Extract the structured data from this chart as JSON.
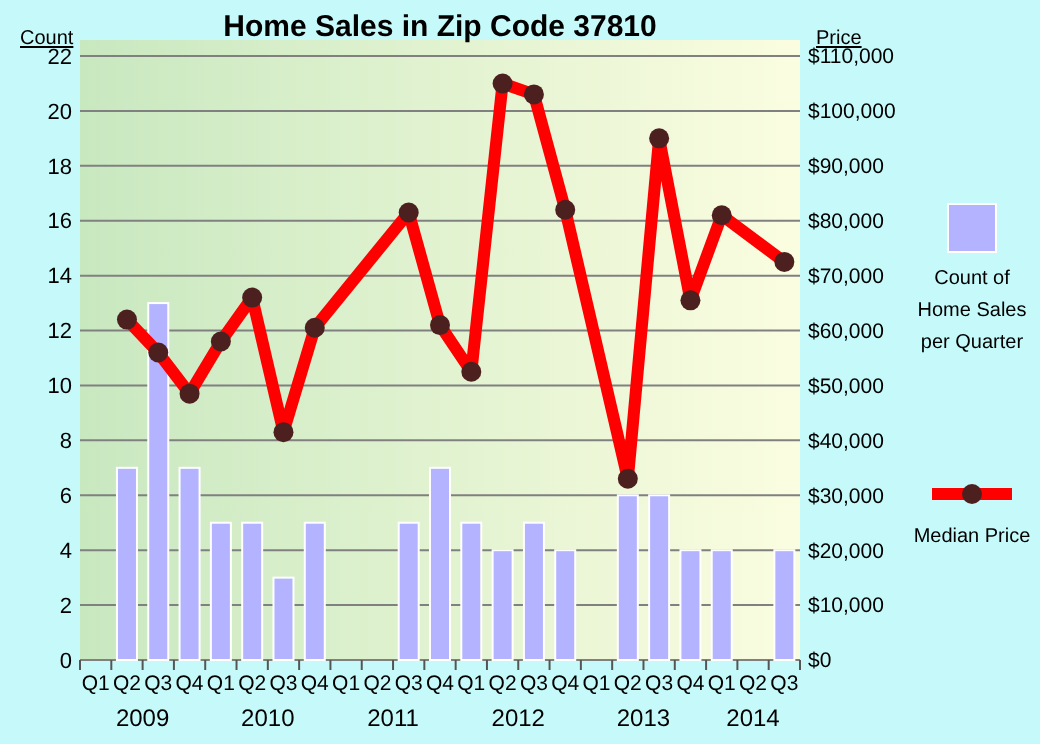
{
  "chart_data": {
    "type": "bar",
    "title": "Home Sales in Zip Code 37810",
    "ylabel": "Count",
    "y2label": "Price",
    "categories": [
      "Q1",
      "Q2",
      "Q3",
      "Q4",
      "Q1",
      "Q2",
      "Q3",
      "Q4",
      "Q1",
      "Q2",
      "Q3",
      "Q4",
      "Q1",
      "Q2",
      "Q3",
      "Q4",
      "Q1",
      "Q2",
      "Q3",
      "Q4",
      "Q1",
      "Q2",
      "Q3"
    ],
    "annotations": [
      "2009",
      "2010",
      "2011",
      "2012",
      "2013",
      "2014"
    ],
    "series": [
      {
        "name": "Count of Home Sales per Quarter",
        "color": "#b3b3ff",
        "values": [
          null,
          7,
          13,
          7,
          5,
          5,
          3,
          5,
          null,
          null,
          5,
          7,
          5,
          4,
          5,
          4,
          null,
          6,
          6,
          4,
          4,
          null,
          4
        ]
      },
      {
        "name": "Median Price",
        "type": "line",
        "axis": "y2",
        "color": "#ff0000",
        "values": [
          null,
          62000,
          56000,
          48500,
          58000,
          66000,
          41500,
          60500,
          null,
          null,
          81500,
          61000,
          52500,
          105000,
          103000,
          82000,
          null,
          33000,
          95000,
          65500,
          81000,
          null,
          72500
        ]
      }
    ],
    "ylim": [
      0,
      22
    ],
    "yticks": [
      0,
      2,
      4,
      6,
      8,
      10,
      12,
      14,
      16,
      18,
      20,
      22
    ],
    "y2lim": [
      0,
      110000
    ],
    "y2ticks": [
      {
        "value": 0,
        "label": "$0"
      },
      {
        "value": 10000,
        "label": "$10,000"
      },
      {
        "value": 20000,
        "label": "$20,000"
      },
      {
        "value": 30000,
        "label": "$30,000"
      },
      {
        "value": 40000,
        "label": "$40,000"
      },
      {
        "value": 50000,
        "label": "$50,000"
      },
      {
        "value": 60000,
        "label": "$60,000"
      },
      {
        "value": 70000,
        "label": "$70,000"
      },
      {
        "value": 80000,
        "label": "$80,000"
      },
      {
        "value": 90000,
        "label": "$90,000"
      },
      {
        "value": 100000,
        "label": "$100,000"
      },
      {
        "value": 110000,
        "label": "$110,000"
      }
    ],
    "grid": "y",
    "legend": "right",
    "marker": "circle",
    "line_style": "solid"
  }
}
